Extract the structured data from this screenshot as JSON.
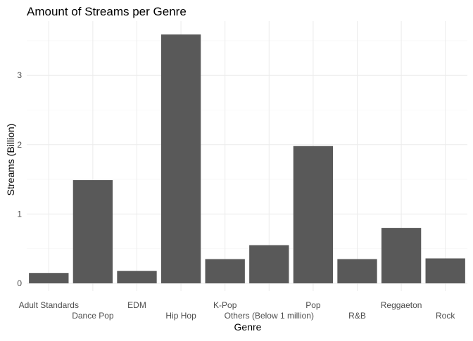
{
  "chart_data": {
    "type": "bar",
    "title": "Amount of Streams per Genre",
    "xlabel": "Genre",
    "ylabel": "Streams (Billion)",
    "categories": [
      "Adult Standards",
      "Dance Pop",
      "EDM",
      "Hip Hop",
      "K-Pop",
      "Others (Below 1 million)",
      "Pop",
      "R&B",
      "Reggaeton",
      "Rock"
    ],
    "values": [
      0.15,
      1.49,
      0.18,
      3.59,
      0.35,
      0.55,
      1.98,
      0.35,
      0.8,
      0.36
    ],
    "ylim": [
      0,
      3.6
    ],
    "yticks": [
      0,
      1,
      2,
      3
    ],
    "grid": true,
    "bar_color": "#595959",
    "grid_major_color": "#ebebeb",
    "grid_minor_color": "#f5f5f5"
  }
}
